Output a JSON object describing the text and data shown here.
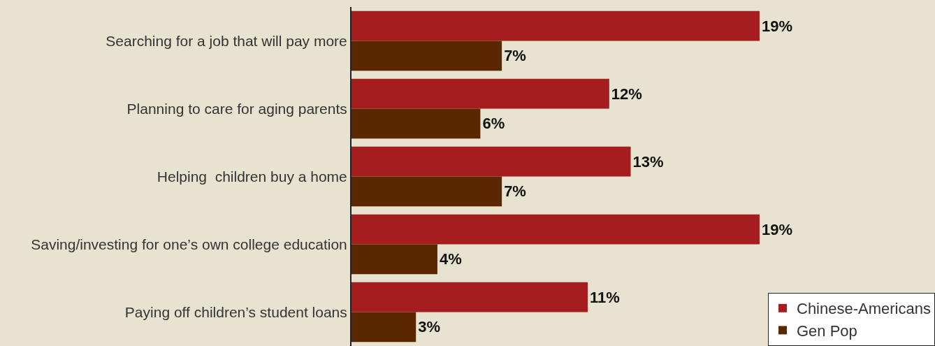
{
  "chart_data": {
    "type": "bar",
    "orientation": "horizontal",
    "categories": [
      "Searching for a job that will pay more",
      "Planning to care for aging parents",
      "Helping  children buy a home",
      "Saving/investing for one’s own college education",
      "Paying off children’s student loans"
    ],
    "series": [
      {
        "name": "Chinese-Americans",
        "color": "#a51d1f",
        "values": [
          19,
          12,
          13,
          19,
          11
        ],
        "value_labels": [
          "19%",
          "12%",
          "13%",
          "19%",
          "11%"
        ]
      },
      {
        "name": "Gen Pop",
        "color": "#5a2700",
        "values": [
          7,
          6,
          7,
          4,
          3
        ],
        "value_labels": [
          "7%",
          "6%",
          "7%",
          "4%",
          "3%"
        ]
      }
    ],
    "legend": "bottom right",
    "tick_labels": "y",
    "grid": false
  }
}
